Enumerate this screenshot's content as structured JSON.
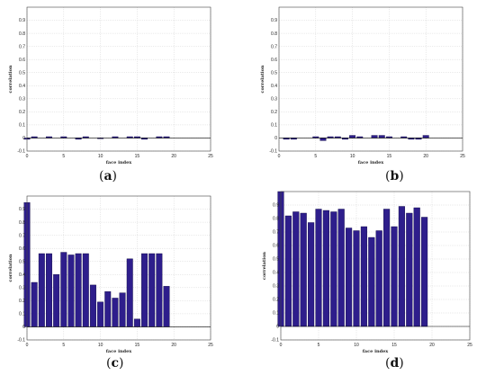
{
  "chart_data": [
    {
      "type": "bar",
      "panel": "a",
      "caption_letter": "a",
      "xlabel": "face index",
      "ylabel": "correlation",
      "xlim": [
        0,
        25
      ],
      "ylim": [
        -0.1,
        1.0
      ],
      "xticks": [
        0,
        5,
        10,
        15,
        20,
        25
      ],
      "yticks": [
        -0.1,
        0,
        0.1,
        0.2,
        0.3,
        0.4,
        0.5,
        0.6,
        0.7,
        0.8,
        0.9
      ],
      "grid": true,
      "bar_color": "#2e1e8c",
      "x": [
        0,
        1,
        2,
        3,
        4,
        5,
        6,
        7,
        8,
        9,
        10,
        11,
        12,
        13,
        14,
        15,
        16,
        17,
        18,
        19,
        20
      ],
      "values": [
        -0.01,
        0.01,
        0.0,
        0.01,
        0.0,
        0.01,
        0.0,
        -0.01,
        0.01,
        0.0,
        -0.005,
        0.0,
        0.01,
        0.0,
        0.01,
        0.01,
        -0.01,
        0.0,
        0.01,
        0.01,
        0.0
      ]
    },
    {
      "type": "bar",
      "panel": "b",
      "caption_letter": "b",
      "xlabel": "face index",
      "ylabel": "correlation",
      "xlim": [
        0,
        25
      ],
      "ylim": [
        -0.1,
        1.0
      ],
      "xticks": [
        0,
        5,
        10,
        15,
        20,
        25
      ],
      "yticks": [
        -0.1,
        0,
        0.1,
        0.2,
        0.3,
        0.4,
        0.5,
        0.6,
        0.7,
        0.8,
        0.9
      ],
      "grid": true,
      "bar_color": "#2e1e8c",
      "x": [
        0,
        1,
        2,
        3,
        4,
        5,
        6,
        7,
        8,
        9,
        10,
        11,
        12,
        13,
        14,
        15,
        16,
        17,
        18,
        19,
        20
      ],
      "values": [
        0.0,
        -0.01,
        -0.01,
        0.0,
        0.0,
        0.01,
        -0.02,
        0.01,
        0.01,
        -0.01,
        0.02,
        0.01,
        0.0,
        0.02,
        0.02,
        0.01,
        0.0,
        0.01,
        -0.01,
        -0.01,
        0.02
      ]
    },
    {
      "type": "bar",
      "panel": "c",
      "caption_letter": "c",
      "xlabel": "face index",
      "ylabel": "correlation",
      "xlim": [
        0,
        25
      ],
      "ylim": [
        -0.1,
        1.0
      ],
      "xticks": [
        0,
        5,
        10,
        15,
        20,
        25
      ],
      "yticks": [
        -0.1,
        0,
        0.1,
        0.2,
        0.3,
        0.4,
        0.5,
        0.6,
        0.7,
        0.8,
        0.9
      ],
      "grid": true,
      "bar_color": "#2e1e8c",
      "x": [
        0,
        1,
        2,
        3,
        4,
        5,
        6,
        7,
        8,
        9,
        10,
        11,
        12,
        13,
        14,
        15,
        16,
        17,
        18,
        19,
        20
      ],
      "values": [
        0.95,
        0.34,
        0.56,
        0.56,
        0.4,
        0.57,
        0.55,
        0.56,
        0.56,
        0.32,
        0.19,
        0.27,
        0.22,
        0.26,
        0.52,
        0.06,
        0.56,
        0.56,
        0.56,
        0.31,
        0.0
      ]
    },
    {
      "type": "bar",
      "panel": "d",
      "caption_letter": "d",
      "xlabel": "face index",
      "ylabel": "correlation",
      "xlim": [
        0,
        25
      ],
      "ylim": [
        -0.1,
        1.0
      ],
      "xticks": [
        0,
        5,
        10,
        15,
        20,
        25
      ],
      "yticks": [
        -0.1,
        0,
        0.1,
        0.2,
        0.3,
        0.4,
        0.5,
        0.6,
        0.7,
        0.8,
        0.9
      ],
      "grid": true,
      "bar_color": "#2e1e8c",
      "x": [
        0,
        1,
        2,
        3,
        4,
        5,
        6,
        7,
        8,
        9,
        10,
        11,
        12,
        13,
        14,
        15,
        16,
        17,
        18,
        19,
        20
      ],
      "values": [
        1.0,
        0.82,
        0.85,
        0.84,
        0.77,
        0.87,
        0.86,
        0.85,
        0.87,
        0.73,
        0.71,
        0.74,
        0.66,
        0.71,
        0.87,
        0.74,
        0.89,
        0.84,
        0.88,
        0.81,
        0.0
      ]
    }
  ]
}
